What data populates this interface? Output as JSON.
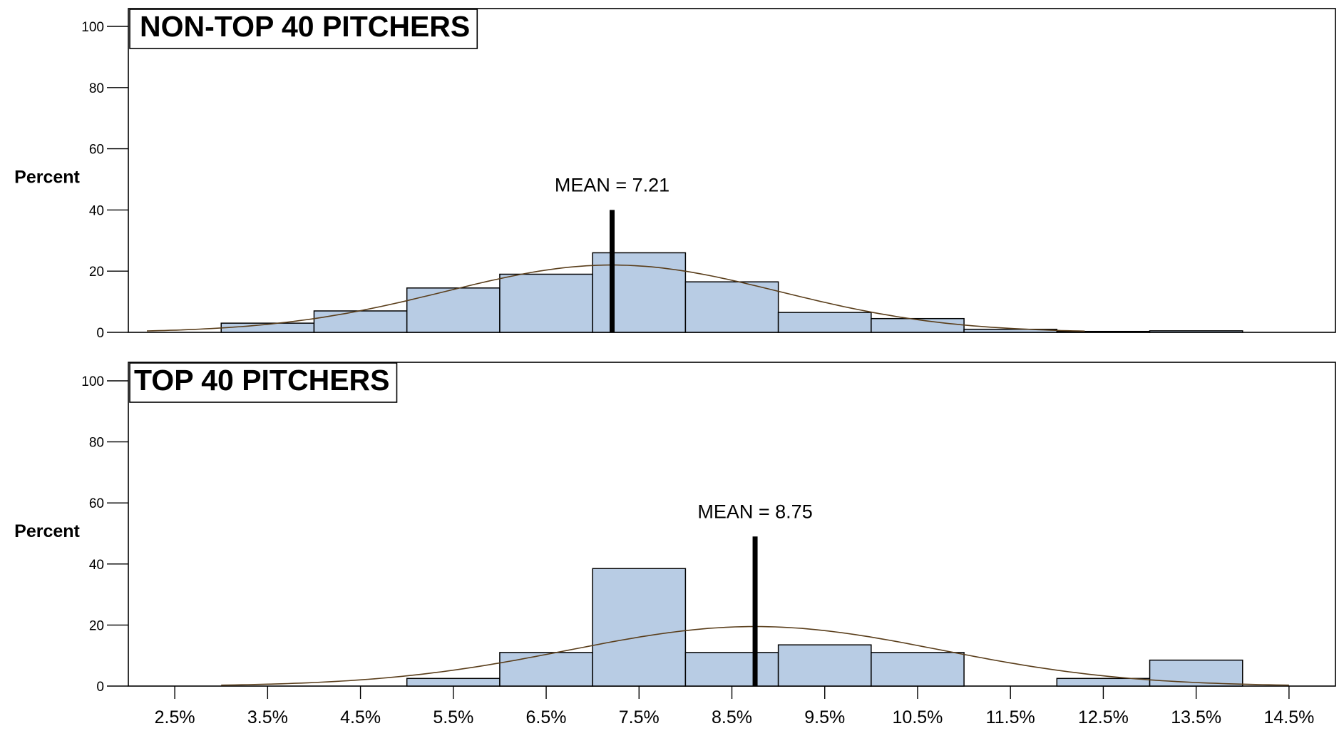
{
  "chart_data": {
    "type": "bar",
    "x_tick_labels": [
      "2.5%",
      "3.5%",
      "4.5%",
      "5.5%",
      "6.5%",
      "7.5%",
      "8.5%",
      "9.5%",
      "10.5%",
      "11.5%",
      "12.5%",
      "13.5%",
      "14.5%"
    ],
    "ylim": [
      0,
      100
    ],
    "y_ticks": [
      0,
      20,
      40,
      60,
      80,
      100
    ],
    "grid": false,
    "panels": [
      {
        "title": "NON-TOP 40 PITCHERS",
        "ylabel": "Percent",
        "mean_value": 7.21,
        "mean_label": "MEAN = 7.21",
        "bar_color": "#b8cce4",
        "curve_color": "#5a3e1b",
        "bins": [
          {
            "from": 3,
            "to": 4,
            "value": 3
          },
          {
            "from": 4,
            "to": 5,
            "value": 7
          },
          {
            "from": 5,
            "to": 6,
            "value": 14.5
          },
          {
            "from": 6,
            "to": 7,
            "value": 19
          },
          {
            "from": 7,
            "to": 8,
            "value": 26
          },
          {
            "from": 8,
            "to": 9,
            "value": 16.5
          },
          {
            "from": 9,
            "to": 10,
            "value": 6.5
          },
          {
            "from": 10,
            "to": 11,
            "value": 4.5
          },
          {
            "from": 11,
            "to": 12,
            "value": 1
          },
          {
            "from": 12,
            "to": 13,
            "value": 0.3
          },
          {
            "from": 13,
            "to": 14,
            "value": 0.5
          }
        ],
        "curve": {
          "mean": 7.21,
          "sd": 1.8,
          "peak": 22,
          "from": 2.2,
          "to": 12.3
        }
      },
      {
        "title": "TOP 40 PITCHERS",
        "ylabel": "Percent",
        "mean_value": 8.75,
        "mean_label": "MEAN = 8.75",
        "bar_color": "#b8cce4",
        "curve_color": "#5a3e1b",
        "bins": [
          {
            "from": 5,
            "to": 6,
            "value": 2.5
          },
          {
            "from": 6,
            "to": 7,
            "value": 11
          },
          {
            "from": 7,
            "to": 8,
            "value": 38.5
          },
          {
            "from": 8,
            "to": 9,
            "value": 11
          },
          {
            "from": 9,
            "to": 10,
            "value": 13.5
          },
          {
            "from": 10,
            "to": 11,
            "value": 11
          },
          {
            "from": 12,
            "to": 13,
            "value": 2.5
          },
          {
            "from": 13,
            "to": 14,
            "value": 8.5
          }
        ],
        "curve": {
          "mean": 8.75,
          "sd": 2.0,
          "peak": 19.5,
          "from": 3.0,
          "to": 14.5
        }
      }
    ]
  }
}
